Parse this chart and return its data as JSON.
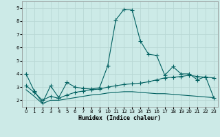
{
  "xlabel": "Humidex (Indice chaleur)",
  "background_color": "#cceae7",
  "grid_color": "#b8d8d5",
  "line_color": "#006060",
  "xlim": [
    -0.5,
    23.5
  ],
  "ylim": [
    1.5,
    9.5
  ],
  "yticks": [
    2,
    3,
    4,
    5,
    6,
    7,
    8,
    9
  ],
  "xticks": [
    0,
    1,
    2,
    3,
    4,
    5,
    6,
    7,
    8,
    9,
    10,
    11,
    12,
    13,
    14,
    15,
    16,
    17,
    18,
    19,
    20,
    21,
    22,
    23
  ],
  "series1_x": [
    0,
    1,
    2,
    3,
    4,
    5,
    6,
    7,
    8,
    9,
    10,
    11,
    12,
    13,
    14,
    15,
    16,
    17,
    18,
    19,
    20,
    21,
    22,
    23
  ],
  "series1_y": [
    4.0,
    2.7,
    1.8,
    3.1,
    2.2,
    3.35,
    3.0,
    2.9,
    2.85,
    2.95,
    4.6,
    8.1,
    8.9,
    8.85,
    6.5,
    5.5,
    5.4,
    3.9,
    4.55,
    4.0,
    4.0,
    3.55,
    3.8,
    2.2
  ],
  "series2_x": [
    0,
    1,
    2,
    3,
    4,
    5,
    6,
    7,
    8,
    9,
    10,
    11,
    12,
    13,
    14,
    15,
    16,
    17,
    18,
    19,
    20,
    21,
    22,
    23
  ],
  "series2_y": [
    3.1,
    2.6,
    2.0,
    2.3,
    2.15,
    2.4,
    2.6,
    2.7,
    2.8,
    2.85,
    3.0,
    3.1,
    3.2,
    3.25,
    3.3,
    3.4,
    3.55,
    3.7,
    3.75,
    3.8,
    3.9,
    3.8,
    3.75,
    3.7
  ],
  "series3_x": [
    0,
    1,
    2,
    3,
    4,
    5,
    6,
    7,
    8,
    9,
    10,
    11,
    12,
    13,
    14,
    15,
    16,
    17,
    18,
    19,
    20,
    21,
    22,
    23
  ],
  "series3_y": [
    2.8,
    2.3,
    1.75,
    2.0,
    2.0,
    2.1,
    2.2,
    2.3,
    2.4,
    2.45,
    2.55,
    2.6,
    2.65,
    2.65,
    2.6,
    2.55,
    2.5,
    2.5,
    2.45,
    2.4,
    2.35,
    2.3,
    2.25,
    2.2
  ],
  "marker_size": 2.5,
  "linewidth": 0.8,
  "xlabel_fontsize": 6,
  "tick_fontsize": 5
}
